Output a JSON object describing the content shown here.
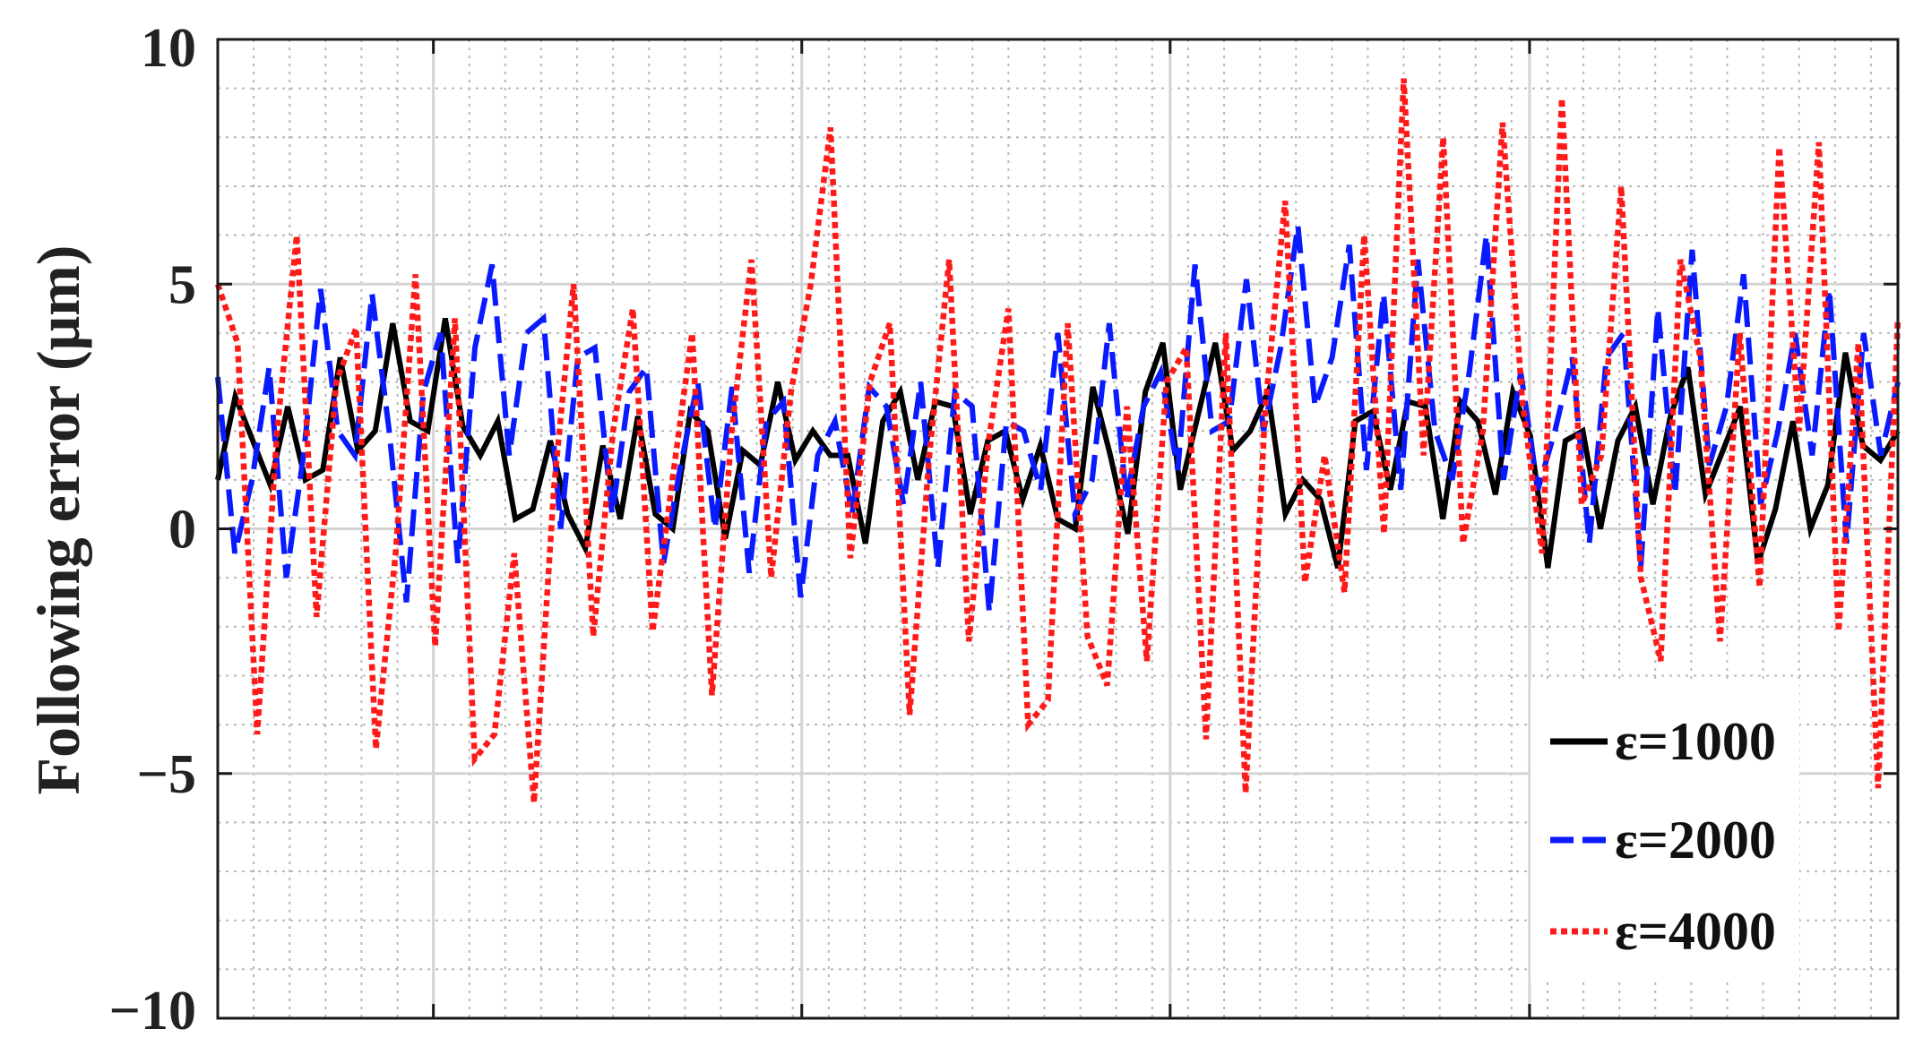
{
  "chart_data": {
    "type": "line",
    "title": "",
    "xlabel": "",
    "ylabel": "Following error (μm)",
    "ylim": [
      -10,
      10
    ],
    "xlim": [
      0,
      187
    ],
    "yticks": [
      {
        "value": 10,
        "label": "10"
      },
      {
        "value": 5,
        "label": "5"
      },
      {
        "value": 0,
        "label": "0"
      },
      {
        "value": -5,
        "label": "−5"
      },
      {
        "value": -10,
        "label": "−10"
      }
    ],
    "xticks_major": [
      24,
      65,
      106,
      146
    ],
    "xticks_minor_step": 4,
    "yticks_minor_step": 1,
    "grid": true,
    "legend_position": "bottom-right",
    "series": [
      {
        "name": "ε=1000",
        "color": "#000000",
        "style": "solid",
        "values": [
          1.0,
          2.7,
          1.8,
          0.9,
          2.5,
          1.0,
          1.2,
          3.5,
          1.6,
          2.0,
          4.2,
          2.2,
          2.0,
          4.3,
          2.1,
          1.5,
          2.2,
          0.2,
          0.4,
          1.8,
          0.3,
          -0.4,
          1.7,
          0.2,
          2.3,
          0.3,
          0.0,
          2.4,
          2.0,
          -0.2,
          1.6,
          1.3,
          3.0,
          1.4,
          2.0,
          1.5,
          1.5,
          -0.3,
          2.2,
          2.8,
          1.0,
          2.6,
          2.5,
          0.3,
          1.8,
          2.0,
          0.6,
          1.7,
          0.2,
          0.0,
          2.9,
          1.5,
          -0.1,
          2.8,
          3.8,
          0.8,
          2.3,
          3.8,
          1.6,
          2.0,
          2.8,
          0.3,
          1.0,
          0.6,
          -0.8,
          2.2,
          2.4,
          0.8,
          2.6,
          2.5,
          0.2,
          2.6,
          2.2,
          0.7,
          2.8,
          1.9,
          -0.8,
          1.8,
          2.0,
          0.0,
          1.8,
          2.5,
          0.5,
          2.3,
          3.3,
          0.7,
          1.6,
          2.5,
          -0.7,
          0.4,
          2.2,
          0.0,
          0.9,
          3.6,
          1.7,
          1.4,
          2.0
        ]
      },
      {
        "name": "ε=2000",
        "color": "#0a1aff",
        "style": "dashed",
        "values": [
          3.1,
          -0.5,
          1.0,
          3.3,
          -1.0,
          1.5,
          4.9,
          2.0,
          1.5,
          4.8,
          2.0,
          -1.5,
          2.8,
          4.0,
          -0.7,
          3.7,
          5.4,
          1.5,
          4.0,
          4.3,
          0.0,
          3.5,
          3.7,
          0.3,
          2.8,
          3.3,
          -0.7,
          1.3,
          3.0,
          0.0,
          2.9,
          -0.9,
          2.2,
          2.6,
          -1.4,
          1.5,
          2.2,
          0.3,
          2.9,
          2.5,
          0.5,
          3.0,
          -0.8,
          2.8,
          2.5,
          -1.7,
          2.2,
          2.0,
          0.8,
          4.0,
          0.3,
          1.0,
          4.2,
          0.6,
          2.5,
          3.2,
          1.2,
          5.4,
          2.0,
          2.2,
          5.1,
          2.0,
          3.7,
          6.2,
          2.5,
          3.5,
          5.8,
          1.2,
          4.8,
          0.8,
          5.5,
          2.0,
          1.0,
          3.2,
          6.0,
          1.0,
          3.2,
          0.8,
          2.0,
          3.5,
          -0.3,
          3.5,
          4.0,
          -0.8,
          4.5,
          0.7,
          5.7,
          1.3,
          2.5,
          5.2,
          0.5,
          2.0,
          4.0,
          1.5,
          4.9,
          -0.3,
          4.0,
          1.5,
          3.0
        ]
      },
      {
        "name": "ε=4000",
        "color": "#ff1a1a",
        "style": "dotted",
        "values": [
          5.0,
          3.8,
          -4.2,
          2.0,
          6.0,
          -1.8,
          3.0,
          4.1,
          -4.5,
          -0.5,
          5.2,
          -2.4,
          4.3,
          -4.7,
          -4.2,
          -0.5,
          -5.6,
          0.8,
          5.0,
          -2.2,
          2.0,
          4.5,
          -2.1,
          1.0,
          4.0,
          -3.4,
          2.0,
          5.5,
          -1.0,
          2.8,
          5.0,
          8.2,
          -0.6,
          3.0,
          4.2,
          -3.8,
          1.5,
          5.5,
          -2.3,
          1.8,
          4.5,
          -4.0,
          -3.5,
          4.2,
          -2.2,
          -3.2,
          2.5,
          -2.7,
          3.0,
          3.7,
          -4.3,
          4.0,
          -5.4,
          2.5,
          6.7,
          -1.1,
          1.5,
          -1.3,
          6.0,
          -0.1,
          9.2,
          1.5,
          8.0,
          -0.3,
          2.0,
          8.3,
          2.6,
          -0.5,
          8.8,
          0.5,
          1.5,
          7.0,
          -1.0,
          -2.7,
          5.5,
          3.5,
          -2.3,
          4.0,
          -1.2,
          7.8,
          2.0,
          7.9,
          -2.1,
          3.8,
          -5.3,
          4.3
        ]
      }
    ]
  },
  "legend": {
    "items": [
      {
        "label": "ε=1000"
      },
      {
        "label": "ε=2000"
      },
      {
        "label": "ε=4000"
      }
    ]
  }
}
